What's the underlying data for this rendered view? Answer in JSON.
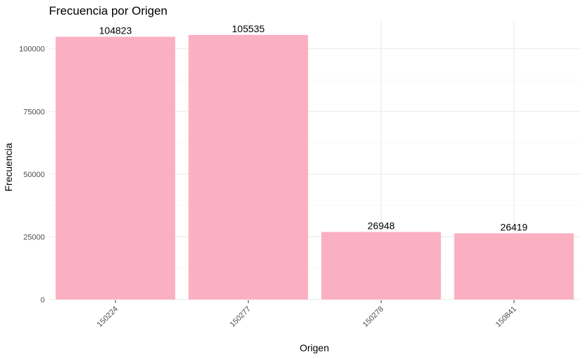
{
  "chart_data": {
    "type": "bar",
    "title": "Frecuencia por Origen",
    "xlabel": "Origen",
    "ylabel": "Frecuencia",
    "categories": [
      "150224",
      "150277",
      "150278",
      "150841"
    ],
    "values": [
      104823,
      105535,
      26948,
      26419
    ],
    "data_labels": [
      "104823",
      "105535",
      "26948",
      "26419"
    ],
    "y_ticks": [
      0,
      25000,
      50000,
      75000,
      100000
    ],
    "y_tick_labels": [
      "0",
      "25000",
      "50000",
      "75000",
      "100000"
    ],
    "ylim": [
      0,
      110812
    ],
    "bar_color": "#fbb0c2",
    "grid": true,
    "legend": "none"
  }
}
